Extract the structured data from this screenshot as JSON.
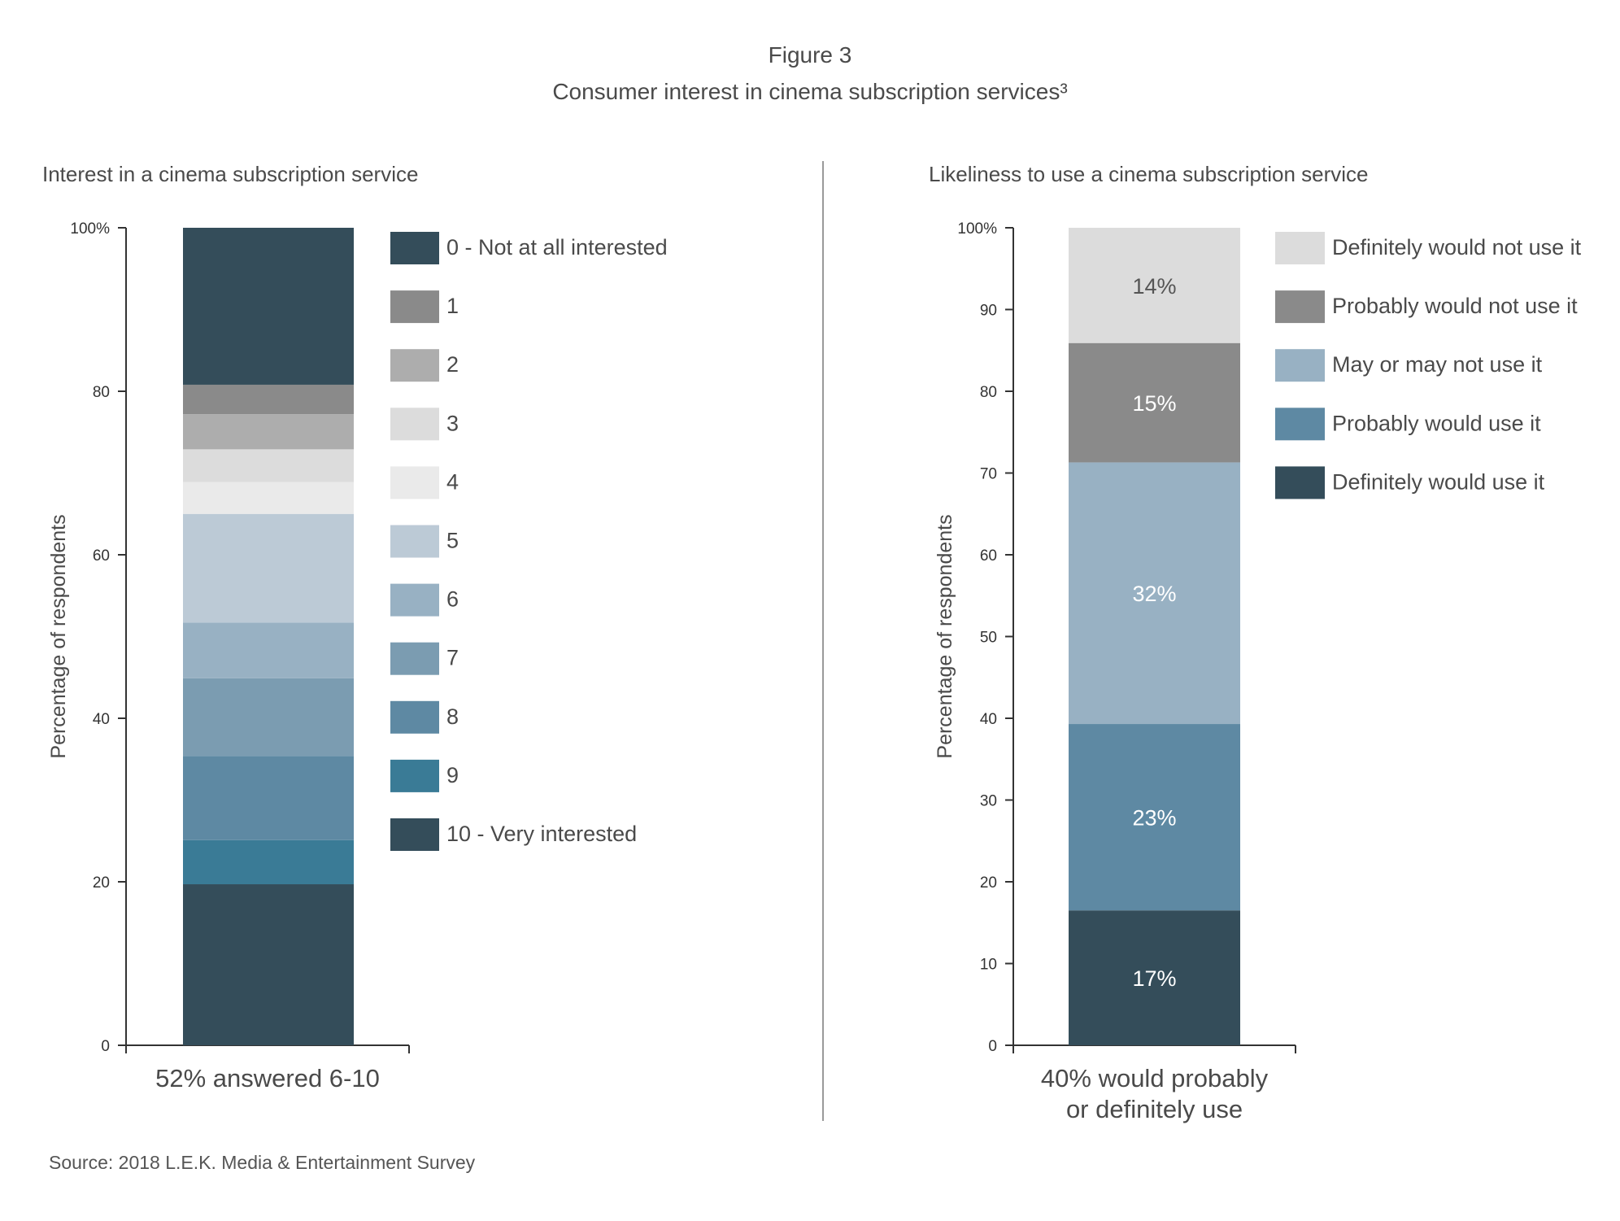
{
  "figure": {
    "title": "Figure 3",
    "subtitle": "Consumer interest in cinema subscription services³"
  },
  "source": "Source: 2018 L.E.K. Media & Entertainment Survey",
  "chart_data": [
    {
      "type": "bar",
      "stacked": true,
      "title": "Interest in a cinema subscription service",
      "ylabel": "Percentage of respondents",
      "xlabel": "52% answered 6-10",
      "ylim": [
        0,
        100
      ],
      "yticks": [
        0,
        20,
        40,
        60,
        80,
        100
      ],
      "ytick_labels": [
        "0",
        "20",
        "40",
        "60",
        "80",
        "100%"
      ],
      "grid": false,
      "legend_position": "right",
      "series": [
        {
          "name": "10 - Very interested",
          "value": 19.7,
          "color": "#344d5a"
        },
        {
          "name": "9",
          "value": 5.4,
          "color": "#3a7b96"
        },
        {
          "name": "8",
          "value": 10.3,
          "color": "#5e89a3"
        },
        {
          "name": "7",
          "value": 9.5,
          "color": "#7b9cb1"
        },
        {
          "name": "6",
          "value": 6.8,
          "color": "#98b1c3"
        },
        {
          "name": "5",
          "value": 13.3,
          "color": "#bccad6"
        },
        {
          "name": "4",
          "value": 3.9,
          "color": "#eaeaea"
        },
        {
          "name": "3",
          "value": 4.0,
          "color": "#dcdcdc"
        },
        {
          "name": "2",
          "value": 4.3,
          "color": "#adadad"
        },
        {
          "name": "1",
          "value": 3.6,
          "color": "#8a8a8a"
        },
        {
          "name": "0 - Not at all interested",
          "value": 19.2,
          "color": "#344d5a"
        }
      ],
      "legend_order": [
        "0 - Not at all interested",
        "1",
        "2",
        "3",
        "4",
        "5",
        "6",
        "7",
        "8",
        "9",
        "10 - Very interested"
      ]
    },
    {
      "type": "bar",
      "stacked": true,
      "title": "Likeliness to use a cinema subscription service",
      "ylabel": "Percentage of respondents",
      "xlabel_lines": [
        "40% would probably",
        "or definitely use"
      ],
      "ylim": [
        0,
        100
      ],
      "yticks": [
        0,
        10,
        20,
        30,
        40,
        50,
        60,
        70,
        80,
        90,
        100
      ],
      "ytick_labels": [
        "0",
        "10",
        "20",
        "30",
        "40",
        "50",
        "60",
        "70",
        "80",
        "90",
        "100%"
      ],
      "grid": false,
      "legend_position": "right",
      "series": [
        {
          "name": "Definitely would use it",
          "value": 16.5,
          "label": "17%",
          "color": "#344d5a",
          "label_color": "#ffffff"
        },
        {
          "name": "Probably would use it",
          "value": 22.8,
          "label": "23%",
          "color": "#5e89a3",
          "label_color": "#ffffff"
        },
        {
          "name": "May or may not use it",
          "value": 32.0,
          "label": "32%",
          "color": "#98b1c3",
          "label_color": "#ffffff"
        },
        {
          "name": "Probably would not use it",
          "value": 14.6,
          "label": "15%",
          "color": "#8a8a8a",
          "label_color": "#ffffff"
        },
        {
          "name": "Definitely would not use it",
          "value": 14.1,
          "label": "14%",
          "color": "#dcdcdc",
          "label_color": "#555555"
        }
      ],
      "legend_order": [
        "Definitely would not use it",
        "Probably would not use it",
        "May or may not use it",
        "Probably would use it",
        "Definitely would use it"
      ]
    }
  ]
}
